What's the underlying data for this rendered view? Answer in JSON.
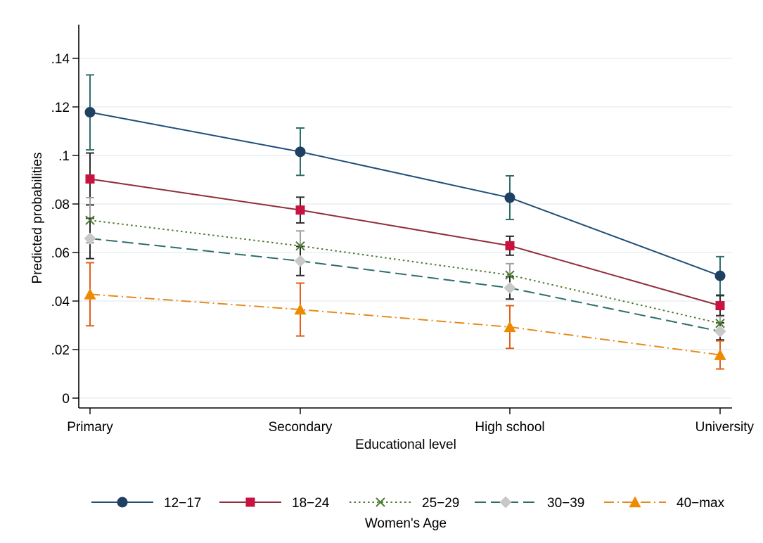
{
  "chart_data": {
    "type": "line",
    "title": "",
    "xlabel": "Educational level",
    "ylabel": "Predicted probabilities",
    "categories": [
      "Primary",
      "Secondary",
      "High school",
      "University"
    ],
    "ylim": [
      0,
      0.154
    ],
    "yticks": [
      0,
      0.02,
      0.04,
      0.06,
      0.08,
      0.1,
      0.12,
      0.14
    ],
    "ytick_labels": [
      "0",
      ".02",
      ".04",
      ".06",
      ".08",
      ".1",
      ".12",
      ".14"
    ],
    "grid": true,
    "legend_title": "Women's Age",
    "legend_position": "bottom",
    "series": [
      {
        "name": "12−17",
        "color": "#1f4e79",
        "ci_color": "#2e6e6a",
        "marker": "circle",
        "line_style": "solid",
        "values": [
          0.1178,
          0.1015,
          0.0826,
          0.0504
        ],
        "ci_low": [
          0.1023,
          0.0918,
          0.0736,
          0.0425
        ],
        "ci_high": [
          0.1332,
          0.1113,
          0.0916,
          0.0583
        ]
      },
      {
        "name": "18−24",
        "color": "#8f2f3a",
        "ci_color": "#2b2b2b",
        "marker": "square",
        "line_style": "solid",
        "values": [
          0.0903,
          0.0775,
          0.0628,
          0.0381
        ],
        "ci_low": [
          0.0796,
          0.0722,
          0.0589,
          0.034
        ],
        "ci_high": [
          0.101,
          0.0828,
          0.0667,
          0.0422
        ]
      },
      {
        "name": "25−29",
        "color": "#4c7a2e",
        "ci_color": "#a0a0a0",
        "marker": "x",
        "line_style": "dotted",
        "values": [
          0.0733,
          0.0627,
          0.0507,
          0.0308
        ],
        "ci_low": [
          0.064,
          0.0565,
          0.046,
          0.028
        ],
        "ci_high": [
          0.0826,
          0.0689,
          0.0554,
          0.0336
        ]
      },
      {
        "name": "30−39",
        "color": "#2e6e6a",
        "ci_color": "#2b2b2b",
        "marker": "diamond",
        "line_style": "longdash",
        "values": [
          0.0658,
          0.0565,
          0.0454,
          0.0275
        ],
        "ci_low": [
          0.0575,
          0.0505,
          0.0408,
          0.024
        ],
        "ci_high": [
          0.0741,
          0.0625,
          0.05,
          0.031
        ]
      },
      {
        "name": "40−max",
        "color": "#e58a1f",
        "ci_color": "#e0601a",
        "marker": "triangle",
        "line_style": "dashdot",
        "values": [
          0.0428,
          0.0365,
          0.0293,
          0.0178
        ],
        "ci_low": [
          0.0298,
          0.0256,
          0.0205,
          0.012
        ],
        "ci_high": [
          0.0558,
          0.0474,
          0.0381,
          0.0236
        ]
      }
    ],
    "colors": {
      "marker_12_17": "#1f3f63",
      "marker_18_24": "#c8123f",
      "marker_30_39": "#c8c8c8",
      "marker_40_max": "#ef8a00",
      "grid": "#e4ecf0"
    }
  }
}
